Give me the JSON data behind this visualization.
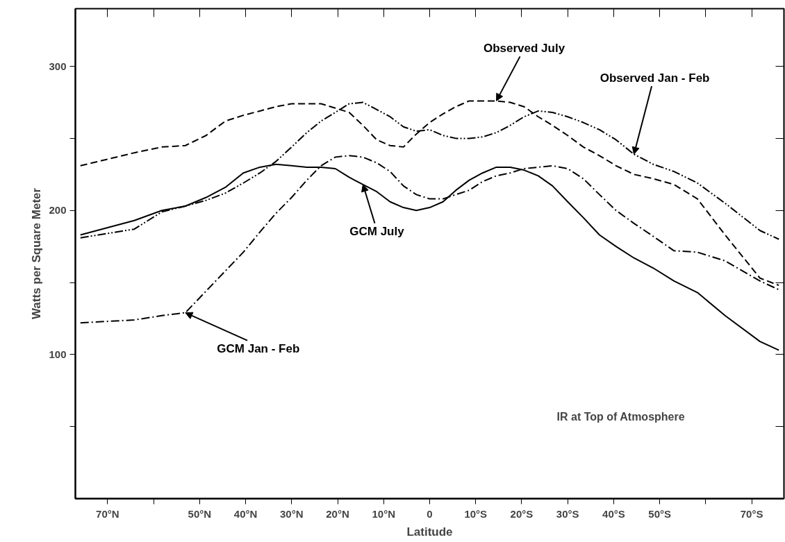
{
  "chart_data": {
    "type": "line",
    "xlabel": "Latitude",
    "ylabel": "Watts per Square Meter",
    "annotations": [
      "IR at Top of Atmosphere"
    ],
    "x": [
      -75.9,
      -64.2,
      -58.2,
      -53.1,
      -48.6,
      -44.4,
      -40.5,
      -36.9,
      -33.4,
      -30,
      -26.7,
      -23.6,
      -20.5,
      -17.5,
      -14.5,
      -11.5,
      -8.6,
      -5.7,
      -2.9,
      0,
      2.9,
      5.7,
      8.6,
      11.5,
      14.5,
      17.5,
      20.5,
      23.6,
      26.7,
      30,
      33.4,
      36.9,
      40.5,
      44.4,
      48.6,
      53.1,
      58.2,
      64.2,
      71.8,
      75.9
    ],
    "series": [
      {
        "name": "Observed July",
        "color": "#000000",
        "line_style": "dashed",
        "values": [
          231,
          240,
          244,
          245,
          252,
          262,
          266,
          269,
          272,
          274,
          274,
          274,
          271,
          268,
          259,
          249,
          245,
          244,
          253,
          261,
          267,
          272,
          276,
          276,
          276,
          275,
          272,
          265,
          259,
          252,
          244,
          238,
          231,
          225,
          222,
          218,
          208,
          183,
          153,
          148
        ]
      },
      {
        "name": "Observed Jan - Feb",
        "color": "#000000",
        "line_style": "dotted",
        "values": [
          181,
          187,
          199,
          203,
          207,
          212,
          219,
          226,
          234,
          244,
          254,
          262,
          268,
          274,
          275,
          270,
          265,
          258,
          255,
          256,
          252,
          250,
          250,
          251,
          254,
          259,
          265,
          269,
          268,
          265,
          261,
          256,
          249,
          239,
          232,
          227,
          219,
          205,
          186,
          180
        ]
      },
      {
        "name": "GCM July",
        "color": "#000000",
        "line_style": "solid",
        "values": [
          183,
          193,
          200,
          203,
          209,
          216,
          226,
          230,
          232,
          231,
          230,
          230,
          229,
          223,
          218,
          213,
          206,
          202,
          200,
          202,
          206,
          214,
          221,
          226,
          230,
          230,
          228,
          224,
          217,
          206,
          195,
          183,
          175,
          167,
          160,
          151,
          143,
          127,
          109,
          103
        ]
      },
      {
        "name": "GCM Jan - Feb",
        "color": "#000000",
        "line_style": "dashdot",
        "values": [
          122,
          124,
          127,
          129,
          144,
          158,
          171,
          185,
          198,
          209,
          221,
          231,
          237,
          238,
          237,
          233,
          227,
          217,
          211,
          208,
          208,
          211,
          214,
          220,
          224,
          226,
          229,
          230,
          231,
          229,
          222,
          211,
          200,
          191,
          182,
          172,
          171,
          165,
          151,
          145
        ]
      }
    ],
    "xlim": [
      -77,
      77
    ],
    "xticks": [
      {
        "value": -70,
        "label": "70°N"
      },
      {
        "value": -60,
        "label": null
      },
      {
        "value": -50,
        "label": "50°N"
      },
      {
        "value": -40,
        "label": "40°N"
      },
      {
        "value": -30,
        "label": "30°N"
      },
      {
        "value": -20,
        "label": "20°N"
      },
      {
        "value": -10,
        "label": "10°N"
      },
      0,
      {
        "value": 10,
        "label": "10°S"
      },
      {
        "value": 20,
        "label": "20°S"
      },
      {
        "value": 30,
        "label": "30°S"
      },
      {
        "value": 40,
        "label": "40°S"
      },
      {
        "value": 50,
        "label": "50°S"
      },
      {
        "value": 60,
        "label": null
      },
      {
        "value": 70,
        "label": "70°S"
      }
    ],
    "ylim": [
      0,
      340
    ],
    "yticks": [
      {
        "value": 50,
        "label": null
      },
      100,
      {
        "value": 150,
        "label": null
      },
      200,
      {
        "value": 250,
        "label": null
      },
      300
    ],
    "grid": false,
    "marker": "none"
  }
}
